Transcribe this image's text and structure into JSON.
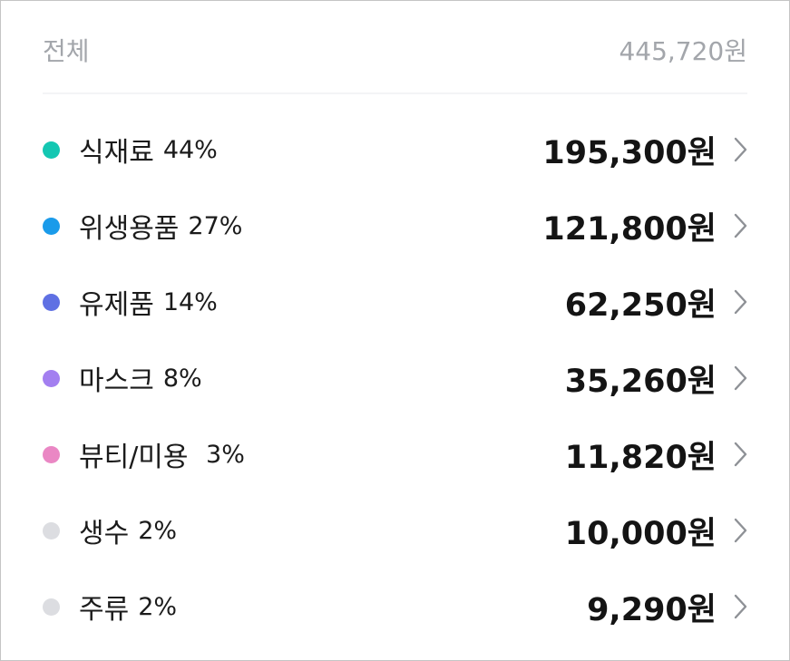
{
  "header": {
    "label": "전체",
    "total": "445,720원"
  },
  "categories": [
    {
      "name": "식재료",
      "percent": "44%",
      "amount": "195,300원",
      "color": "#14c7b2"
    },
    {
      "name": "위생용품",
      "percent": "27%",
      "amount": "121,800원",
      "color": "#1a9bea"
    },
    {
      "name": "유제품",
      "percent": "14%",
      "amount": "62,250원",
      "color": "#5f70e3"
    },
    {
      "name": "마스크",
      "percent": "8%",
      "amount": "35,260원",
      "color": "#a37ff0"
    },
    {
      "name": "뷰티/미용 ",
      "percent": "3%",
      "amount": "11,820원",
      "color": "#ea87c4"
    },
    {
      "name": "생수",
      "percent": "2%",
      "amount": "10,000원",
      "color": "#dcdde1"
    },
    {
      "name": "주류",
      "percent": "2%",
      "amount": "9,290원",
      "color": "#dcdde1"
    }
  ],
  "icons": {
    "row_arrow": "chevron-right-icon"
  }
}
